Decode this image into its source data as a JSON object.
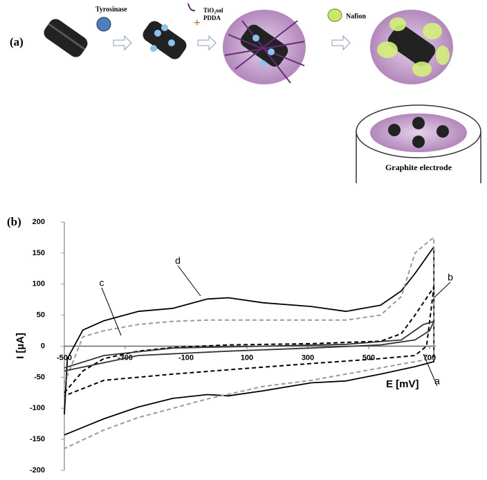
{
  "panel_a": {
    "label": "(a)",
    "tyrosinase": "Tyrosinase",
    "tio2": "TiO₂sol",
    "pdda": "PDDA",
    "plus": "+",
    "nafion": "Nafion",
    "electrode": "Graphite electrode"
  },
  "chart_data": {
    "type": "line",
    "panel_label": "(b)",
    "xlabel": "E [mV]",
    "ylabel": "I [µA]",
    "xlim": [
      -500,
      720
    ],
    "xticks": [
      -500,
      -300,
      -100,
      100,
      300,
      500,
      700
    ],
    "ylim": [
      -200,
      200
    ],
    "yticks": [
      200,
      150,
      100,
      50,
      0,
      -50,
      -100,
      -150,
      -200
    ],
    "series": [
      {
        "name": "d",
        "color": "#000000",
        "style": "solid",
        "x": [
          -500,
          -490,
          -439,
          -370,
          -257,
          -143,
          -30,
          39,
          152,
          311,
          425,
          539,
          607,
          652,
          714,
          714,
          652,
          539,
          425,
          311,
          152,
          39,
          -30,
          -143,
          -257,
          -370,
          -500
        ],
        "values": [
          -110,
          -20,
          26,
          41,
          56,
          61,
          76,
          78,
          70,
          64,
          56,
          66,
          89,
          117,
          160,
          -25,
          -33,
          -45,
          -56,
          -59,
          -72,
          -80,
          -78,
          -84,
          -98,
          -117,
          -143
        ]
      },
      {
        "name": "c",
        "color": "#999999",
        "style": "dashed",
        "x": [
          -500,
          -439,
          -370,
          -257,
          -143,
          -30,
          152,
          311,
          425,
          539,
          607,
          652,
          700,
          714,
          714,
          652,
          539,
          425,
          311,
          152,
          -30,
          -143,
          -257,
          -370,
          -500
        ],
        "values": [
          -60,
          15,
          25,
          35,
          40,
          42,
          42,
          42,
          42,
          50,
          80,
          150,
          170,
          175,
          -20,
          -25,
          -35,
          -45,
          -55,
          -65,
          -85,
          -100,
          -115,
          -135,
          -165
        ]
      },
      {
        "name": "b",
        "color": "#000000",
        "style": "dashed",
        "x": [
          -500,
          -439,
          -370,
          -257,
          -143,
          39,
          311,
          539,
          607,
          652,
          714,
          690,
          652,
          539,
          311,
          39,
          -143,
          -370,
          -500
        ],
        "values": [
          -75,
          -40,
          -20,
          -8,
          -2,
          2,
          4,
          8,
          20,
          50,
          95,
          0,
          -15,
          -20,
          -28,
          -38,
          -45,
          -55,
          -80
        ]
      },
      {
        "name": "a",
        "color": "#333333",
        "style": "solid",
        "x": [
          -500,
          -370,
          -143,
          152,
          425,
          607,
          680,
          714,
          700,
          652,
          539,
          311,
          39,
          -257,
          -500
        ],
        "values": [
          -35,
          -15,
          -3,
          0,
          3,
          10,
          35,
          40,
          25,
          10,
          2,
          -3,
          -8,
          -15,
          -40
        ]
      }
    ]
  }
}
